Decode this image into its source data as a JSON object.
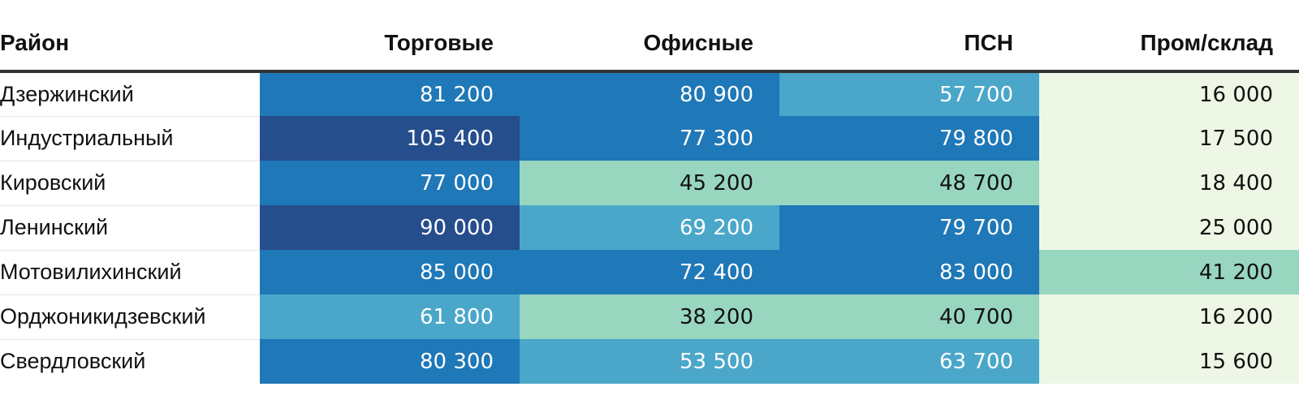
{
  "chart_data": {
    "type": "table",
    "columns": [
      "Район",
      "Торговые",
      "Офисные",
      "ПСН",
      "Пром/склад"
    ],
    "rows": [
      {
        "name": "Дзержинский",
        "values": [
          "81 200",
          "80 900",
          "57 700",
          "16 000"
        ],
        "levels": [
          "blue",
          "blue",
          "mid",
          "pale"
        ]
      },
      {
        "name": "Индустриальный",
        "values": [
          "105 400",
          "77 300",
          "79 800",
          "17 500"
        ],
        "levels": [
          "dark",
          "blue",
          "blue",
          "pale"
        ]
      },
      {
        "name": "Кировский",
        "values": [
          "77 000",
          "45 200",
          "48 700",
          "18 400"
        ],
        "levels": [
          "blue",
          "mint",
          "mint",
          "pale"
        ]
      },
      {
        "name": "Ленинский",
        "values": [
          "90 000",
          "69 200",
          "79 700",
          "25 000"
        ],
        "levels": [
          "dark",
          "mid",
          "blue",
          "pale"
        ]
      },
      {
        "name": "Мотовилихинский",
        "values": [
          "85 000",
          "72 400",
          "83 000",
          "41 200"
        ],
        "levels": [
          "blue",
          "blue",
          "blue",
          "mint"
        ]
      },
      {
        "name": "Орджоникидзевский",
        "values": [
          "61 800",
          "38 200",
          "40 700",
          "16 200"
        ],
        "levels": [
          "mid",
          "mint",
          "mint",
          "pale"
        ]
      },
      {
        "name": "Свердловский",
        "values": [
          "80 300",
          "53 500",
          "63 700",
          "15 600"
        ],
        "levels": [
          "blue",
          "mid",
          "mid",
          "pale"
        ]
      }
    ],
    "color_scale": {
      "dark": "#264d8c",
      "blue": "#1f78b7",
      "mid": "#4aa7ca",
      "mint": "#98d6c0",
      "pale": "#eef7e6"
    }
  }
}
